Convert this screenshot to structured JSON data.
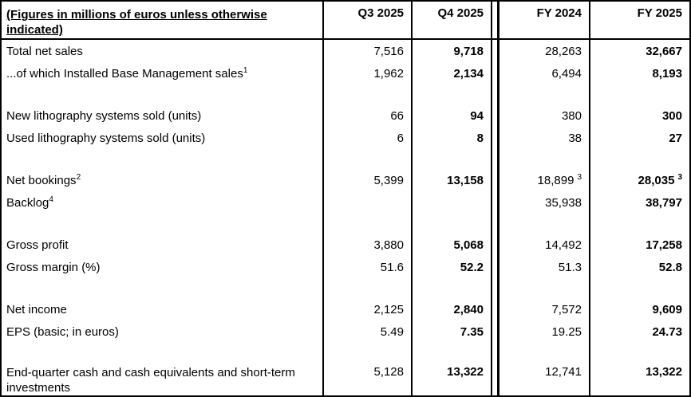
{
  "table": {
    "caption": "(Figures in millions of euros unless otherwise indicated)",
    "columns": [
      "Q3 2025",
      "Q4 2025",
      "FY 2024",
      "FY 2025"
    ],
    "bold_columns": [
      1,
      3
    ],
    "colors": {
      "border": "#000000",
      "text": "#000000",
      "background": "#ffffff"
    },
    "rows": [
      {
        "type": "data",
        "label": "Total net sales",
        "label_sup": "",
        "values": [
          "7,516",
          "9,718",
          "28,263",
          "32,667"
        ],
        "value_sups": [
          "",
          "",
          "",
          ""
        ]
      },
      {
        "type": "data",
        "label": "...of which Installed Base Management sales",
        "label_sup": "1",
        "values": [
          "1,962",
          "2,134",
          "6,494",
          "8,193"
        ],
        "value_sups": [
          "",
          "",
          "",
          ""
        ]
      },
      {
        "type": "blank"
      },
      {
        "type": "data",
        "label": "New lithography systems sold (units)",
        "label_sup": "",
        "values": [
          "66",
          "94",
          "380",
          "300"
        ],
        "value_sups": [
          "",
          "",
          "",
          ""
        ]
      },
      {
        "type": "data",
        "label": "Used lithography systems sold (units)",
        "label_sup": "",
        "values": [
          "6",
          "8",
          "38",
          "27"
        ],
        "value_sups": [
          "",
          "",
          "",
          ""
        ]
      },
      {
        "type": "blank"
      },
      {
        "type": "data",
        "label": "Net bookings",
        "label_sup": "2",
        "values": [
          "5,399",
          "13,158",
          "18,899",
          "28,035"
        ],
        "value_sups": [
          "",
          "",
          "3",
          "3"
        ]
      },
      {
        "type": "data",
        "label": "Backlog",
        "label_sup": "4",
        "values": [
          "",
          "",
          "35,938",
          "38,797"
        ],
        "value_sups": [
          "",
          "",
          "",
          ""
        ]
      },
      {
        "type": "blank"
      },
      {
        "type": "data",
        "label": "Gross profit",
        "label_sup": "",
        "values": [
          "3,880",
          "5,068",
          "14,492",
          "17,258"
        ],
        "value_sups": [
          "",
          "",
          "",
          ""
        ]
      },
      {
        "type": "data",
        "label": "Gross margin (%)",
        "label_sup": "",
        "values": [
          "51.6",
          "52.2",
          "51.3",
          "52.8"
        ],
        "value_sups": [
          "",
          "",
          "",
          ""
        ]
      },
      {
        "type": "blank"
      },
      {
        "type": "data",
        "label": "Net income",
        "label_sup": "",
        "values": [
          "2,125",
          "2,840",
          "7,572",
          "9,609"
        ],
        "value_sups": [
          "",
          "",
          "",
          ""
        ]
      },
      {
        "type": "data",
        "label": "EPS (basic; in euros)",
        "label_sup": "",
        "values": [
          "5.49",
          "7.35",
          "19.25",
          "24.73"
        ],
        "value_sups": [
          "",
          "",
          "",
          ""
        ]
      },
      {
        "type": "blank"
      },
      {
        "type": "data",
        "tall": true,
        "label": "End-quarter cash and cash equivalents and short-term investments",
        "label_sup": "",
        "values": [
          "5,128",
          "13,322",
          "12,741",
          "13,322"
        ],
        "value_sups": [
          "",
          "",
          "",
          ""
        ]
      }
    ]
  }
}
